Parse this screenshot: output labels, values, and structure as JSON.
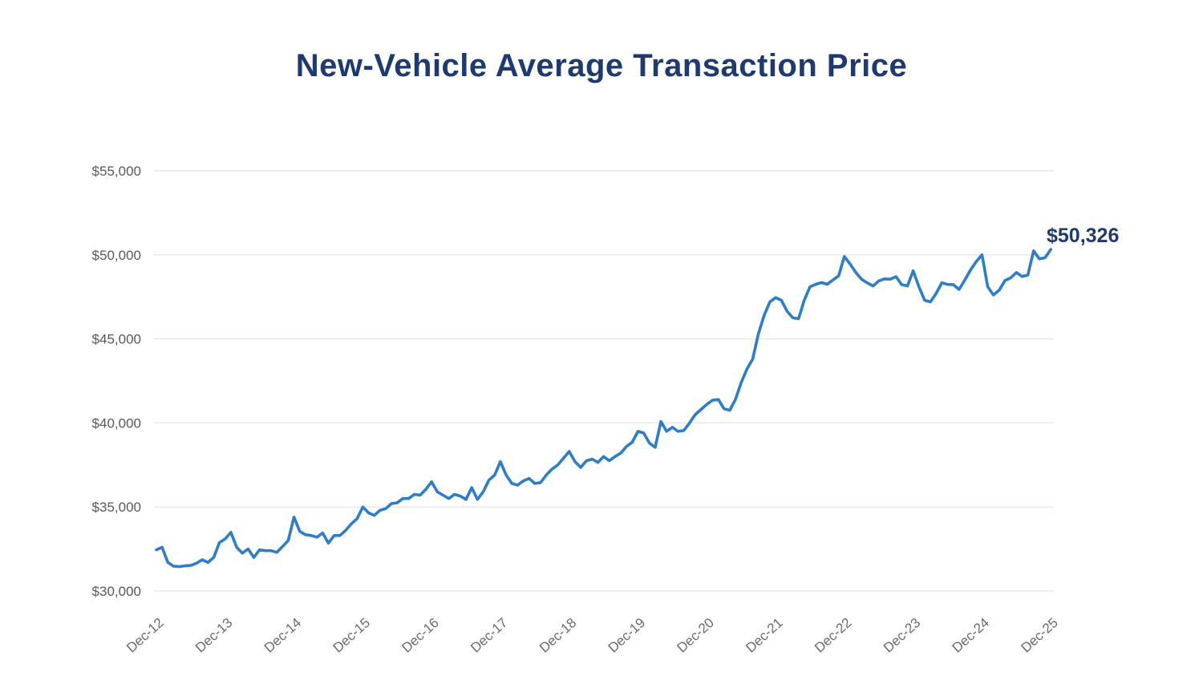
{
  "page": {
    "title": "New-Vehicle Average Transaction Price"
  },
  "chart_data": {
    "type": "line",
    "title": "New-Vehicle Average Transaction Price",
    "xlabel": "",
    "ylabel": "",
    "frequency": "monthly",
    "x_start": "Dec-12",
    "x_end": "Dec-25",
    "x_tick_labels": [
      "Dec-12",
      "Dec-13",
      "Dec-14",
      "Dec-15",
      "Dec-16",
      "Dec-17",
      "Dec-18",
      "Dec-19",
      "Dec-20",
      "Dec-21",
      "Dec-22",
      "Dec-23",
      "Dec-24",
      "Dec-25"
    ],
    "y_ticks": [
      {
        "label": "$55,000",
        "value": 55000
      },
      {
        "label": "$50,000",
        "value": 50000
      },
      {
        "label": "$45,000",
        "value": 45000
      },
      {
        "label": "$40,000",
        "value": 40000
      },
      {
        "label": "$35,000",
        "value": 35000
      },
      {
        "label": "$30,000",
        "value": 30000
      }
    ],
    "ylim": [
      30000,
      55000
    ],
    "grid": "horizontal-only",
    "legend": "none",
    "end_label": "$50,326",
    "final_value": 50326,
    "line_color": "#2e7dc6",
    "title_color": "#1e3a6e",
    "grid_color": "#e9e9e9",
    "y_axis_label_color": "#58595b",
    "x_axis_label_color": "#6a6a6a",
    "values": [
      32450,
      32600,
      31700,
      31480,
      31450,
      31500,
      31520,
      31650,
      31860,
      31700,
      32000,
      32880,
      33100,
      33490,
      32600,
      32250,
      32500,
      32000,
      32450,
      32400,
      32400,
      32300,
      32650,
      33000,
      34400,
      33550,
      33350,
      33300,
      33200,
      33450,
      32850,
      33300,
      33300,
      33600,
      34000,
      34300,
      35000,
      34650,
      34500,
      34800,
      34900,
      35200,
      35250,
      35500,
      35500,
      35750,
      35700,
      36050,
      36500,
      35900,
      35700,
      35500,
      35750,
      35650,
      35450,
      36150,
      35450,
      35900,
      36600,
      36900,
      37700,
      36900,
      36400,
      36300,
      36550,
      36700,
      36400,
      36450,
      36900,
      37250,
      37500,
      37900,
      38300,
      37700,
      37350,
      37750,
      37850,
      37650,
      38000,
      37750,
      38000,
      38200,
      38600,
      38850,
      39500,
      39400,
      38800,
      38550,
      40080,
      39500,
      39740,
      39500,
      39550,
      40000,
      40500,
      40800,
      41100,
      41350,
      41400,
      40850,
      40750,
      41400,
      42400,
      43200,
      43800,
      45300,
      46400,
      47200,
      47450,
      47300,
      46650,
      46250,
      46200,
      47300,
      48100,
      48250,
      48350,
      48250,
      48500,
      48750,
      49900,
      49450,
      48950,
      48550,
      48330,
      48150,
      48450,
      48570,
      48550,
      48700,
      48230,
      48150,
      49050,
      48100,
      47300,
      47200,
      47700,
      48340,
      48240,
      48230,
      47940,
      48500,
      49100,
      49600,
      50000,
      48100,
      47610,
      47900,
      48470,
      48630,
      48950,
      48710,
      48800,
      50240,
      49760,
      49830,
      50326
    ]
  }
}
